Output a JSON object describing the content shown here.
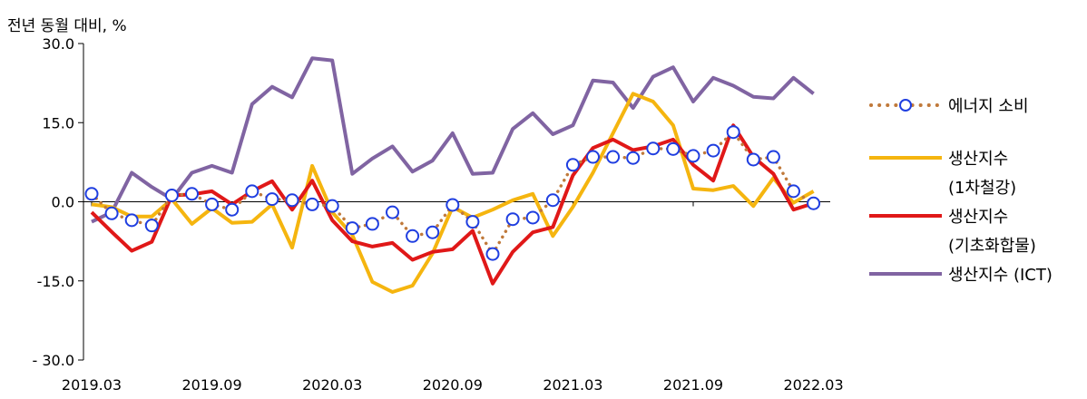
{
  "chart_data": {
    "type": "line",
    "unit_label": "전년 동월 대비, %",
    "ylim": [
      -30,
      30
    ],
    "y_ticks": [
      "30.0",
      "15.0",
      "0.0",
      "-15.0",
      "- 30.0"
    ],
    "x_tick_labels": [
      "2019.03",
      "2019.09",
      "2020.03",
      "2020.09",
      "2021.03",
      "2021.09",
      "2022.03"
    ],
    "categories": [
      "2019.03",
      "2019.04",
      "2019.05",
      "2019.06",
      "2019.07",
      "2019.08",
      "2019.09",
      "2019.10",
      "2019.11",
      "2019.12",
      "2020.01",
      "2020.02",
      "2020.03",
      "2020.04",
      "2020.05",
      "2020.06",
      "2020.07",
      "2020.08",
      "2020.09",
      "2020.10",
      "2020.11",
      "2020.12",
      "2021.01",
      "2021.02",
      "2021.03",
      "2021.04",
      "2021.05",
      "2021.06",
      "2021.07",
      "2021.08",
      "2021.09",
      "2021.10",
      "2021.11",
      "2021.12",
      "2022.01",
      "2022.02",
      "2022.03"
    ],
    "grid": false,
    "legend_position": "right",
    "series": [
      {
        "name": "에너지 소비",
        "style": "dotted-circles",
        "color": "#c0793a",
        "marker_color": "#1f3ee0",
        "values": [
          1.5,
          -2.2,
          -3.5,
          -4.5,
          1.2,
          1.5,
          -0.5,
          -1.5,
          2.0,
          0.5,
          0.3,
          -0.5,
          -0.8,
          -5.0,
          -4.2,
          -2.0,
          -6.5,
          -5.8,
          -0.6,
          -3.8,
          -9.9,
          -3.3,
          -3.0,
          0.3,
          7.0,
          8.5,
          8.5,
          8.3,
          10.1,
          10.0,
          8.7,
          9.7,
          13.2,
          8.0,
          8.5,
          2.0,
          -0.3
        ]
      },
      {
        "name": "생산지수",
        "name_sub": "(1차철강)",
        "color": "#f5b50f",
        "values": [
          -0.5,
          -1.0,
          -2.8,
          -2.8,
          0.5,
          -4.2,
          -1.2,
          -4.0,
          -3.8,
          -0.5,
          -8.7,
          6.8,
          -2.0,
          -6.3,
          -15.2,
          -17.1,
          -15.9,
          -9.8,
          -1.0,
          -3.0,
          -1.5,
          0.3,
          1.5,
          -6.5,
          -1.0,
          5.5,
          13.0,
          20.5,
          19.0,
          14.5,
          2.5,
          2.2,
          3.0,
          -0.8,
          4.5,
          -0.2,
          2.0
        ]
      },
      {
        "name": "생산지수",
        "name_sub": "(기초화합물)",
        "color": "#e01818",
        "values": [
          -2.0,
          -5.7,
          -9.3,
          -7.6,
          1.2,
          1.4,
          2.0,
          -0.5,
          2.0,
          3.9,
          -1.5,
          4.0,
          -3.5,
          -7.5,
          -8.5,
          -7.8,
          -11.0,
          -9.5,
          -9.0,
          -5.5,
          -15.5,
          -9.5,
          -5.8,
          -4.8,
          5.0,
          10.2,
          11.8,
          9.8,
          10.5,
          11.8,
          7.0,
          4.0,
          14.5,
          8.5,
          5.3,
          -1.5,
          -0.3
        ]
      },
      {
        "name": "생산지수 (ICT)",
        "color": "#8064a2",
        "values": [
          -3.8,
          -2.0,
          5.5,
          2.8,
          0.5,
          5.5,
          6.8,
          5.5,
          18.5,
          21.8,
          19.8,
          27.2,
          26.8,
          5.3,
          8.2,
          10.5,
          5.7,
          7.8,
          13.0,
          5.3,
          5.5,
          13.8,
          16.8,
          12.8,
          14.5,
          23.0,
          22.6,
          17.8,
          23.7,
          25.5,
          19.0,
          23.5,
          22.0,
          19.9,
          19.6,
          23.5,
          20.5
        ]
      }
    ]
  }
}
